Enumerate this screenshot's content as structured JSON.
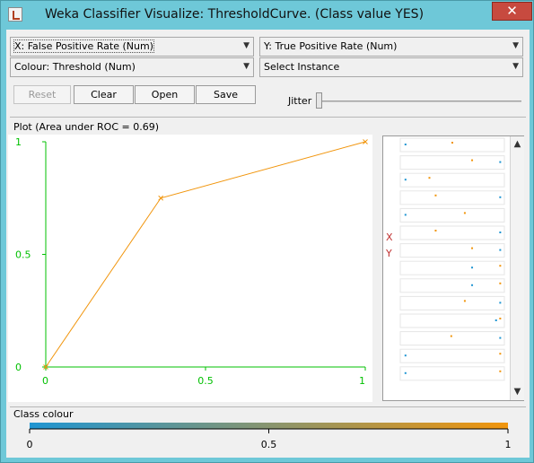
{
  "window": {
    "title": "Weka Classifier Visualize: ThresholdCurve. (Class value YES)",
    "close_glyph": "✕"
  },
  "controls": {
    "x_axis": "X: False Positive Rate (Num)",
    "y_axis": "Y: True Positive Rate (Num)",
    "colour": "Colour: Threshold (Num)",
    "select_instance": "Select Instance",
    "reset_label": "Reset",
    "clear_label": "Clear",
    "open_label": "Open",
    "save_label": "Save",
    "jitter_label": "Jitter",
    "jitter_value": 0
  },
  "plot": {
    "title": "Plot (Area under ROC = 0.69)",
    "line_color": "#f1950c",
    "axis_color": "#00c000"
  },
  "chart_data": {
    "type": "line",
    "title": "Plot (Area under ROC = 0.69)",
    "xlabel": "",
    "ylabel": "",
    "xlim": [
      0,
      1
    ],
    "ylim": [
      0,
      1
    ],
    "x_ticks": [
      "0",
      "0.5",
      "1"
    ],
    "y_ticks": [
      "0",
      "0.5",
      "1"
    ],
    "points": [
      {
        "x": 0,
        "y": 0
      },
      {
        "x": 0.36,
        "y": 0.75
      },
      {
        "x": 1,
        "y": 1
      }
    ]
  },
  "side_panel": {
    "x_letter": "X",
    "y_letter": "Y",
    "strips": [
      {
        "blue": 0.05,
        "orange": 0.5
      },
      {
        "blue": 0.96,
        "orange": 0.69
      },
      {
        "blue": 0.05,
        "orange": 0.28
      },
      {
        "blue": 0.96,
        "orange": 0.34
      },
      {
        "blue": 0.05,
        "orange": 0.62
      },
      {
        "blue": 0.96,
        "orange": 0.34
      },
      {
        "blue": 0.96,
        "orange": 0.69
      },
      {
        "blue": 0.69,
        "orange": 0.96
      },
      {
        "blue": 0.69,
        "orange": 0.96
      },
      {
        "blue": 0.96,
        "orange": 0.62
      },
      {
        "blue": 0.92,
        "orange": 0.96
      },
      {
        "blue": 0.96,
        "orange": 0.49
      },
      {
        "blue": 0.05,
        "orange": 0.96
      },
      {
        "blue": 0.05,
        "orange": 0.96
      }
    ]
  },
  "class_colour": {
    "label": "Class colour",
    "ticks": [
      "0",
      "0.5",
      "1"
    ],
    "start_color": "#1f95d2",
    "end_color": "#f1950c"
  }
}
